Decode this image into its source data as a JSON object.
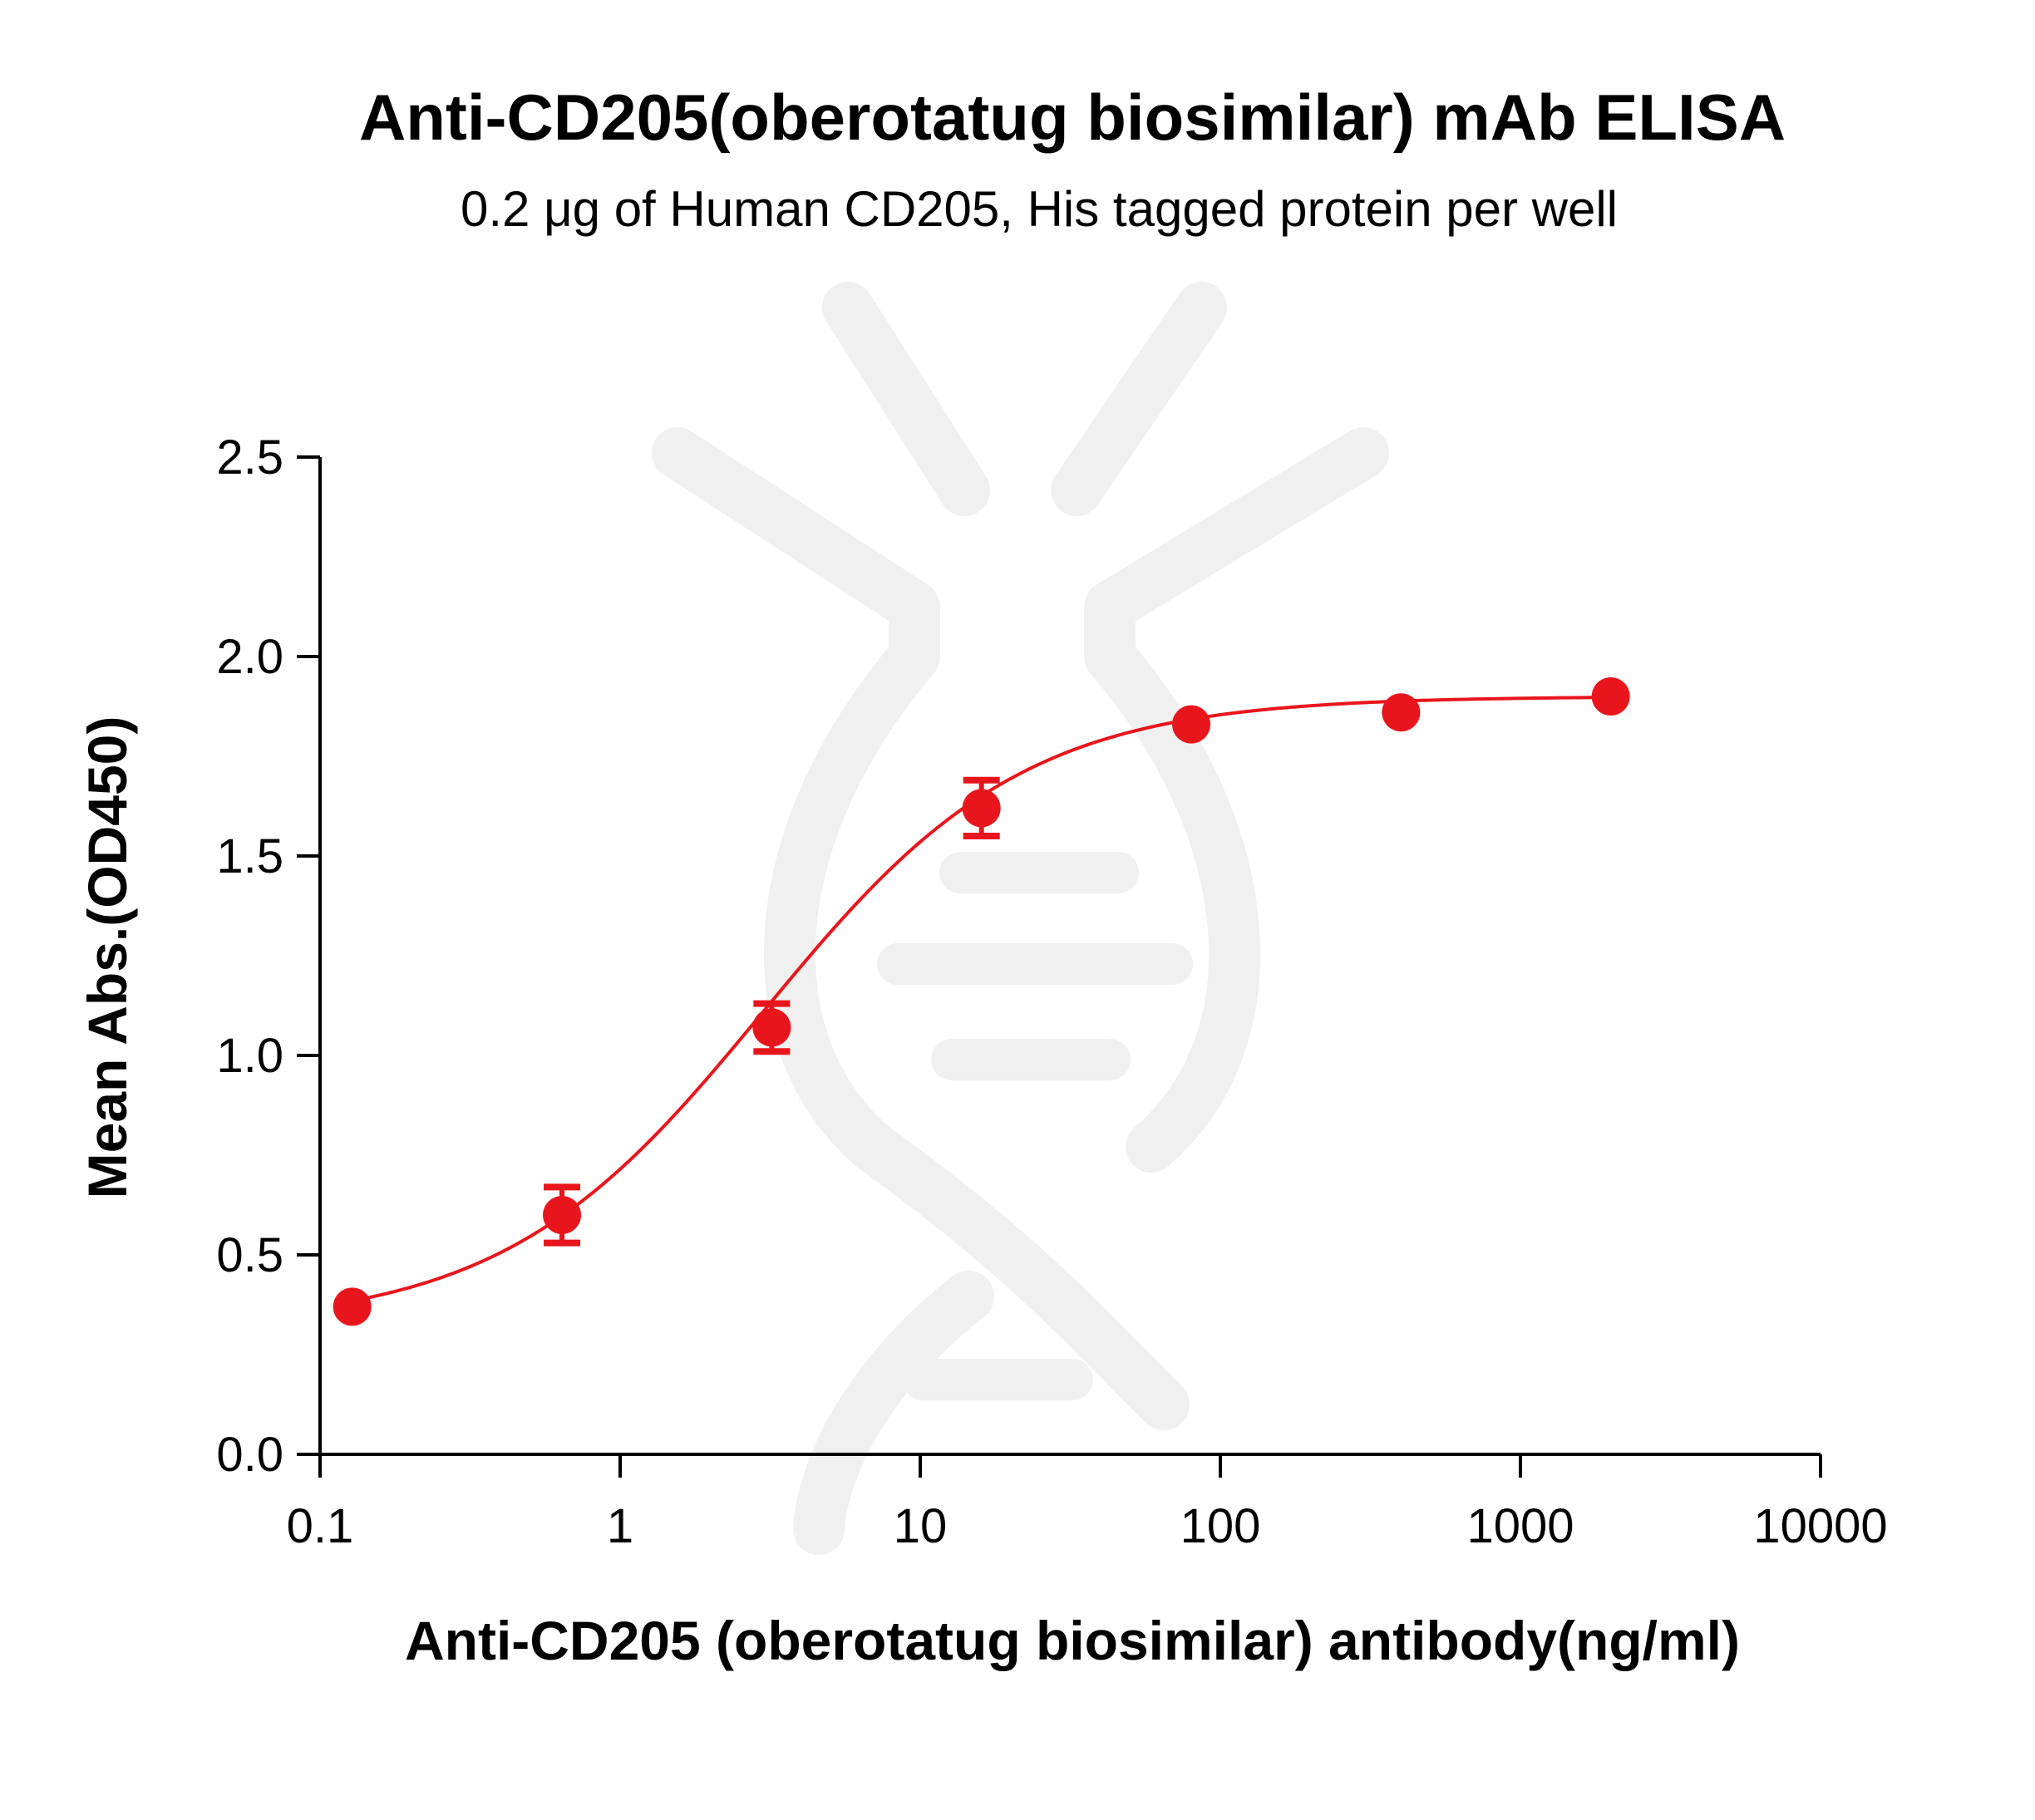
{
  "colors": {
    "series": "#e8161c",
    "axis": "#000000",
    "watermark": "#f0f0f0",
    "background": "#ffffff"
  },
  "chart_data": {
    "type": "scatter",
    "title": "Anti-CD205(oberotatug biosimilar) mAb ELISA",
    "subtitle": "0.2 μg of Human CD205, His tagged protein per well",
    "xlabel": "Anti-CD205 (oberotatug biosimilar) antibody(ng/ml)",
    "ylabel": "Mean Abs.(OD450)",
    "xscale": "log",
    "xlim": [
      0.1,
      10000
    ],
    "ylim": [
      0,
      2.5
    ],
    "xticks": [
      0.1,
      1,
      10,
      100,
      1000,
      10000
    ],
    "xtick_labels": [
      "0.1",
      "1",
      "10",
      "100",
      "1000",
      "10000"
    ],
    "yticks": [
      0,
      0.5,
      1.0,
      1.5,
      2.0,
      2.5
    ],
    "ytick_labels": [
      "0.0",
      "0.5",
      "1.0",
      "1.5",
      "2.0",
      "2.5"
    ],
    "grid": false,
    "series": [
      {
        "x": [
          0.128,
          0.64,
          3.2,
          16,
          80,
          400,
          2000
        ],
        "y": [
          0.37,
          0.6,
          1.07,
          1.62,
          1.83,
          1.86,
          1.9
        ],
        "error": [
          0.02,
          0.07,
          0.06,
          0.07,
          0.02,
          0.02,
          0.02
        ],
        "fit": "4PL",
        "fit_params": {
          "bottom": 0.32,
          "top": 1.9,
          "ec50": 3.0,
          "hill": 1.0
        }
      }
    ]
  }
}
